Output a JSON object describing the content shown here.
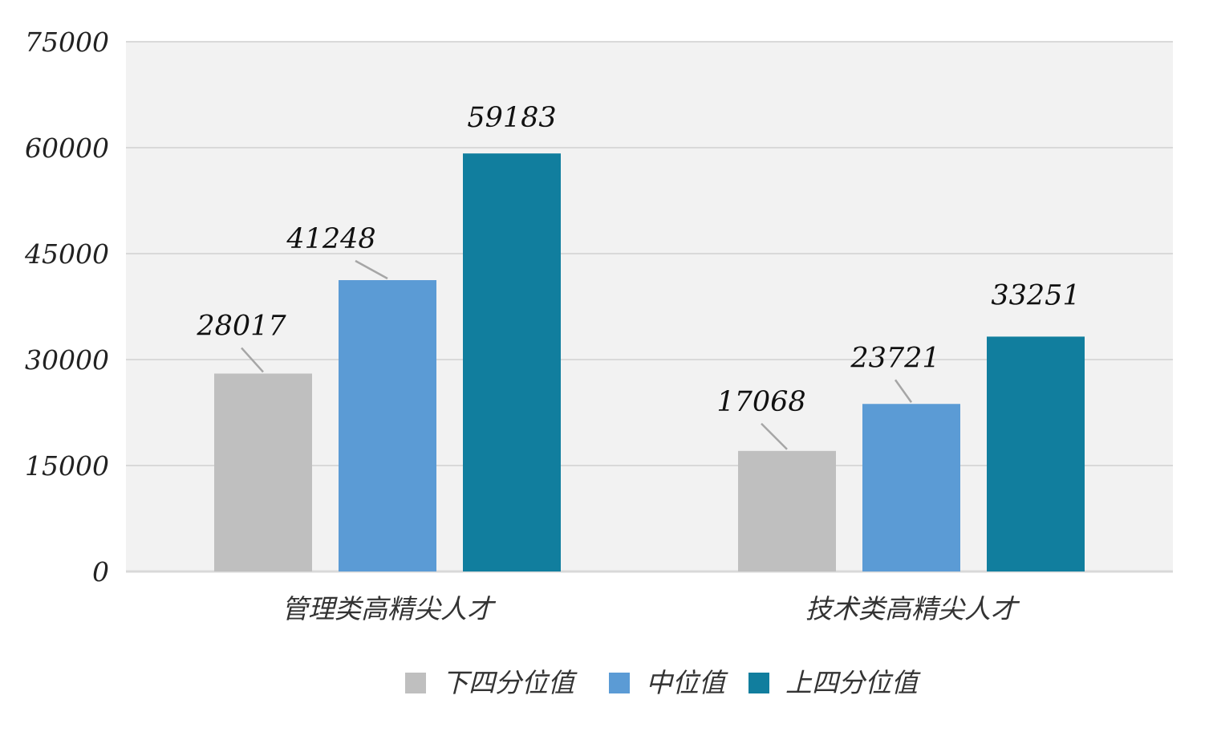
{
  "chart_data": {
    "type": "bar",
    "categories": [
      "管理类高精尖人才",
      "技术类高精尖人才"
    ],
    "series": [
      {
        "name": "下四分位值",
        "color": "#bfbfbf",
        "values": [
          28017,
          17068
        ]
      },
      {
        "name": "中位值",
        "color": "#5b9bd5",
        "values": [
          41248,
          23721
        ]
      },
      {
        "name": "上四分位值",
        "color": "#117e9e",
        "values": [
          59183,
          33251
        ]
      }
    ],
    "y_ticks": [
      "0",
      "15000",
      "30000",
      "45000",
      "60000",
      "75000"
    ],
    "ylim": [
      0,
      75000
    ],
    "grid": true,
    "plot_background": "#f2f2f2",
    "gridline_color": "#d9d9d9",
    "legend_position": "bottom"
  }
}
